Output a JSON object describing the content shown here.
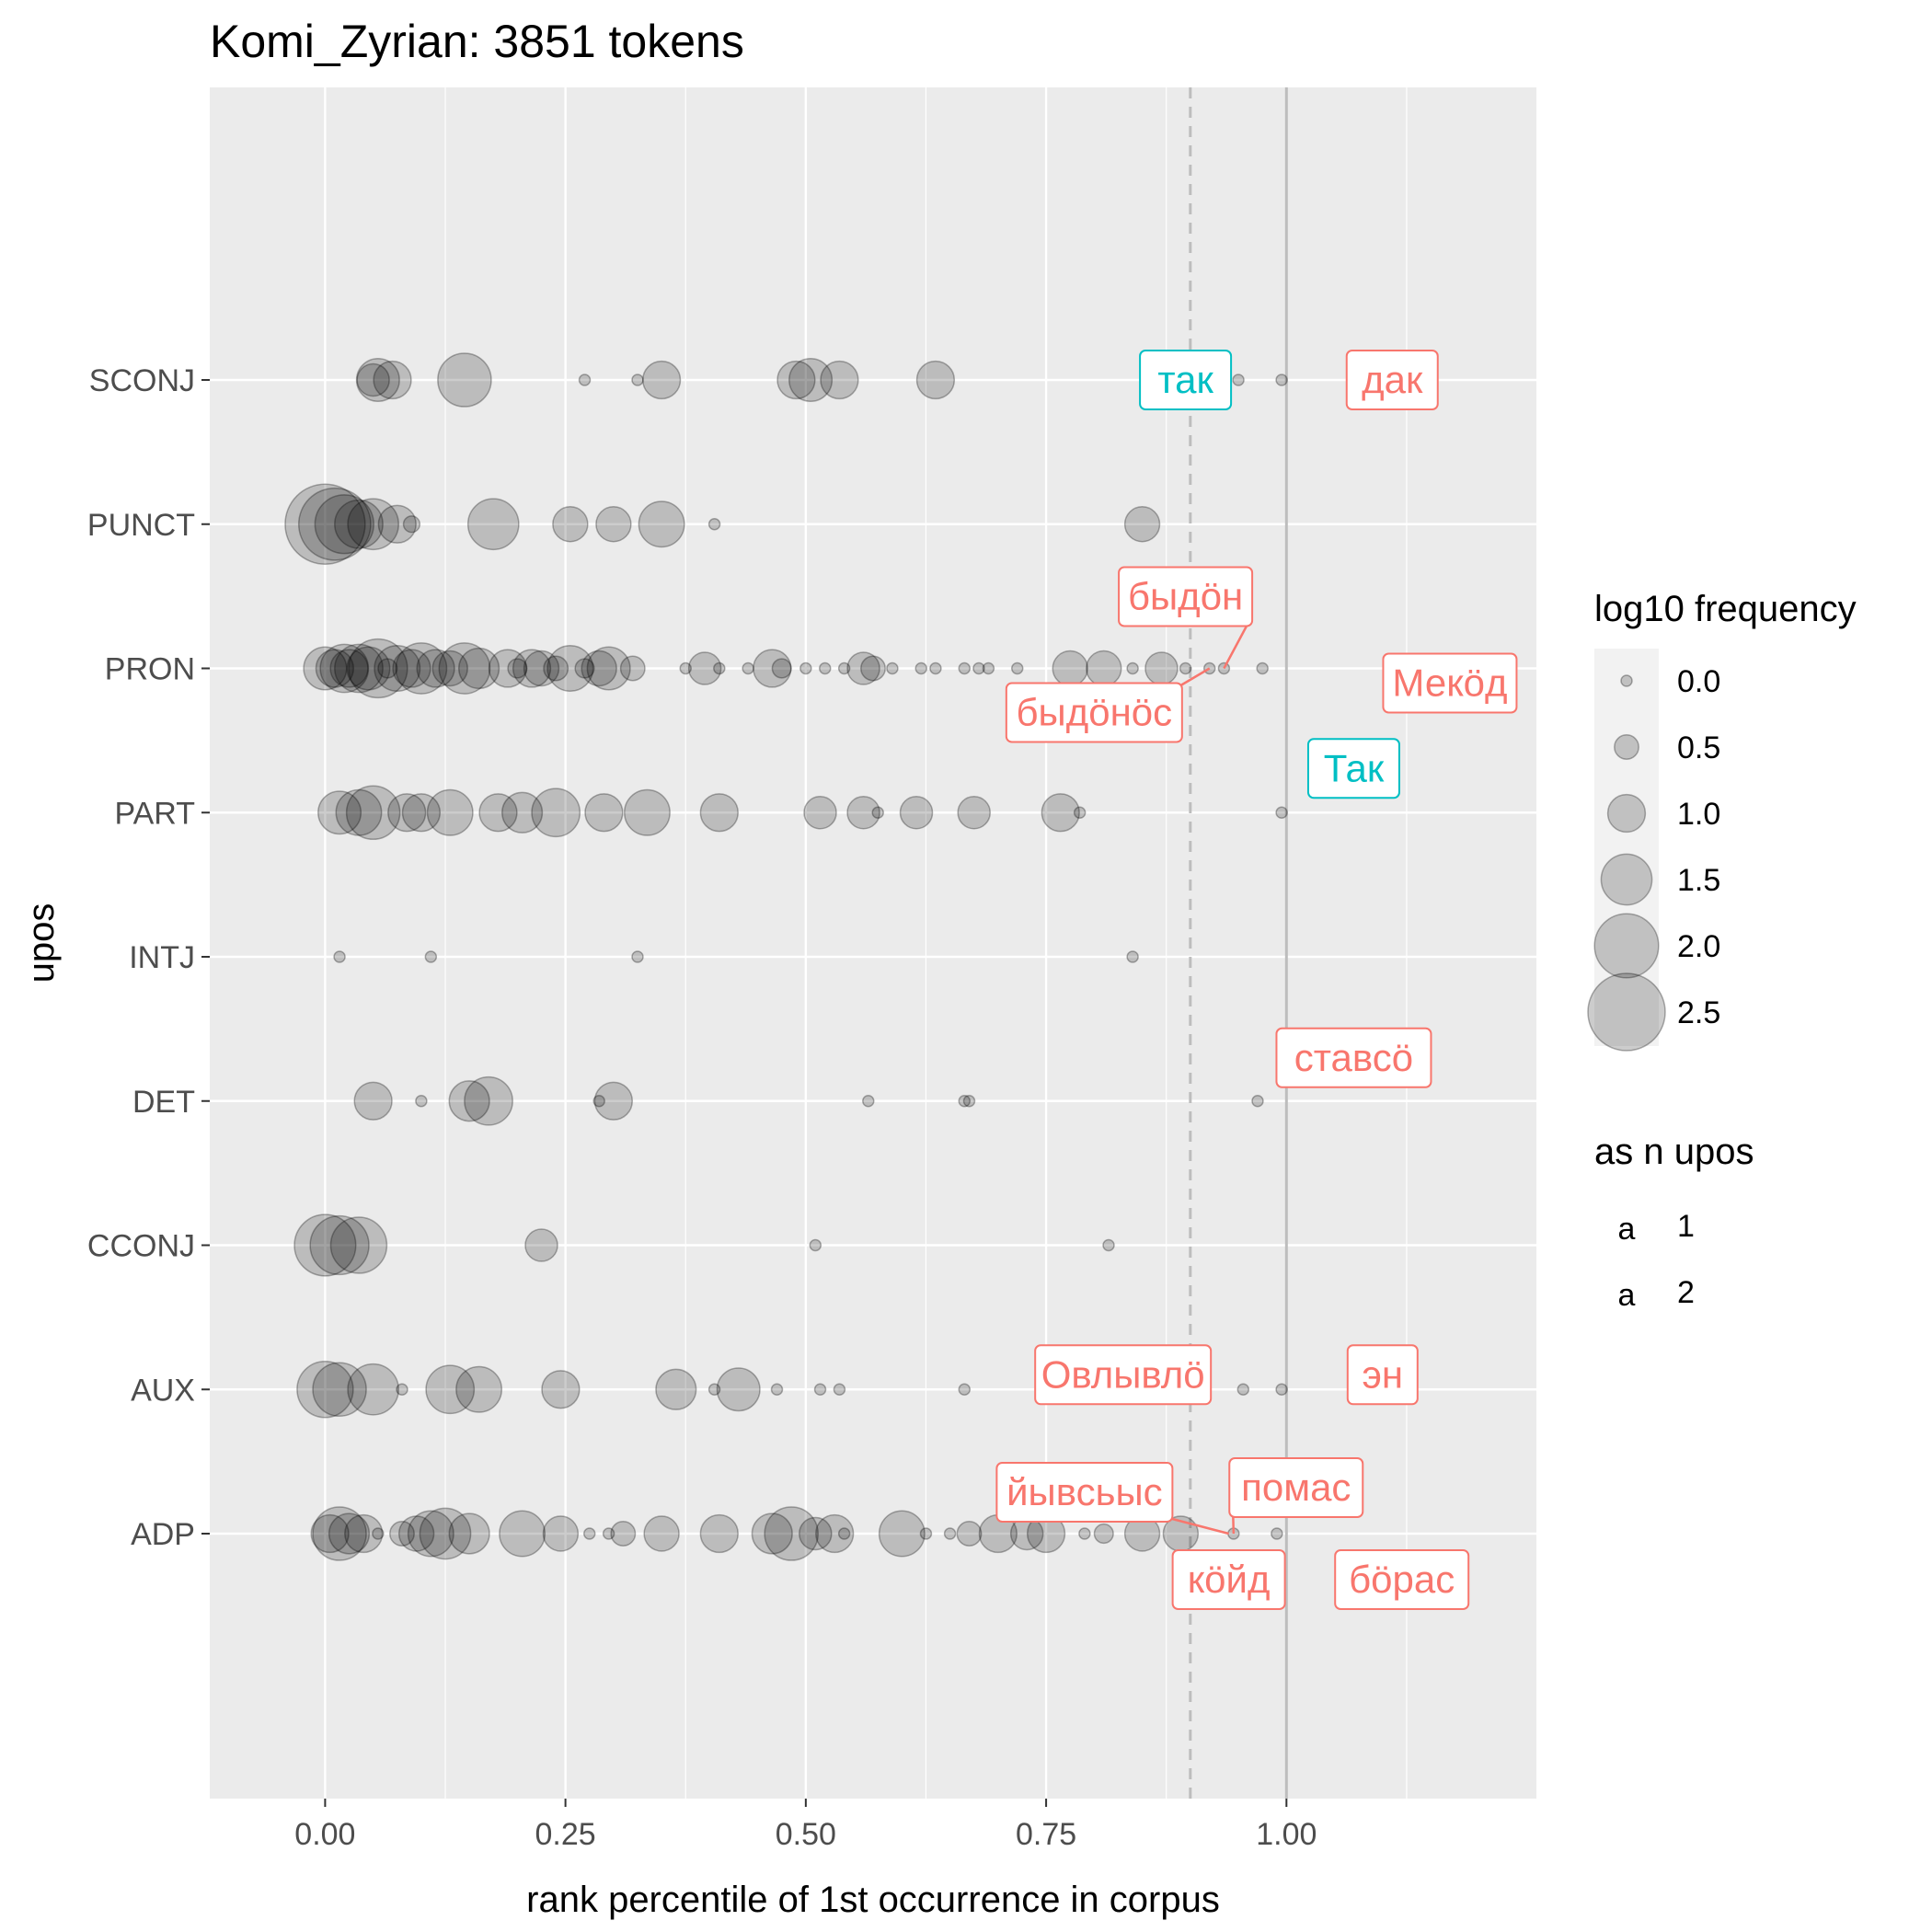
{
  "chart_data": {
    "type": "scatter",
    "title": "Komi_Zyrian: 3851 tokens",
    "xlabel": "rank percentile of 1st occurrence in corpus",
    "ylabel": "upos",
    "xlim": [
      -0.12,
      1.26
    ],
    "x_ticks": [
      "0.00",
      "0.25",
      "0.50",
      "0.75",
      "1.00"
    ],
    "x_tick_values": [
      0,
      0.25,
      0.5,
      0.75,
      1.0
    ],
    "categories": [
      "ADP",
      "AUX",
      "CCONJ",
      "DET",
      "INTJ",
      "PART",
      "PRON",
      "PUNCT",
      "SCONJ"
    ],
    "grid": true,
    "reference_lines": [
      {
        "x": 0.9,
        "style": "dashed",
        "color": "#bdbdbd"
      },
      {
        "x": 1.0,
        "style": "solid",
        "color": "#bdbdbd"
      }
    ],
    "colors": {
      "n1": "#f8766d",
      "n2": "#00bfc4",
      "point_fill": "#000000",
      "panel": "#ebebeb",
      "grid": "#ffffff"
    },
    "point_opacity": 0.2,
    "series": [
      {
        "category": "SCONJ",
        "points": [
          [
            0.05,
            0.8
          ],
          [
            0.055,
            1.2
          ],
          [
            0.07,
            1.0
          ],
          [
            0.145,
            1.6
          ],
          [
            0.27,
            0.0
          ],
          [
            0.325,
            0.0
          ],
          [
            0.35,
            1.0
          ],
          [
            0.49,
            1.0
          ],
          [
            0.505,
            1.2
          ],
          [
            0.535,
            1.0
          ],
          [
            0.635,
            1.0
          ],
          [
            0.95,
            0.0
          ],
          [
            0.995,
            0.0
          ]
        ]
      },
      {
        "category": "PUNCT",
        "points": [
          [
            0.0,
            2.6
          ],
          [
            0.01,
            2.3
          ],
          [
            0.02,
            1.8
          ],
          [
            0.035,
            1.4
          ],
          [
            0.05,
            1.5
          ],
          [
            0.075,
            1.0
          ],
          [
            0.09,
            0.2
          ],
          [
            0.175,
            1.5
          ],
          [
            0.255,
            0.9
          ],
          [
            0.3,
            0.9
          ],
          [
            0.35,
            1.3
          ],
          [
            0.405,
            0.0
          ],
          [
            0.85,
            0.9
          ]
        ]
      },
      {
        "category": "PRON",
        "points": [
          [
            0.0,
            1.2
          ],
          [
            0.01,
            1.0
          ],
          [
            0.02,
            1.4
          ],
          [
            0.025,
            1.0
          ],
          [
            0.035,
            1.4
          ],
          [
            0.045,
            1.2
          ],
          [
            0.055,
            1.8
          ],
          [
            0.065,
            0.3
          ],
          [
            0.075,
            1.3
          ],
          [
            0.09,
            1.0
          ],
          [
            0.1,
            1.5
          ],
          [
            0.115,
            1.0
          ],
          [
            0.13,
            0.9
          ],
          [
            0.145,
            1.5
          ],
          [
            0.16,
            1.1
          ],
          [
            0.19,
            1.0
          ],
          [
            0.2,
            0.3
          ],
          [
            0.215,
            1.0
          ],
          [
            0.225,
            0.9
          ],
          [
            0.24,
            0.5
          ],
          [
            0.255,
            1.3
          ],
          [
            0.27,
            0.3
          ],
          [
            0.285,
            0.9
          ],
          [
            0.295,
            1.2
          ],
          [
            0.32,
            0.5
          ],
          [
            0.375,
            0.0
          ],
          [
            0.395,
            0.8
          ],
          [
            0.41,
            0.0
          ],
          [
            0.44,
            0.0
          ],
          [
            0.465,
            1.0
          ],
          [
            0.475,
            0.3
          ],
          [
            0.5,
            0.0
          ],
          [
            0.52,
            0.0
          ],
          [
            0.54,
            0.0
          ],
          [
            0.56,
            0.8
          ],
          [
            0.57,
            0.5
          ],
          [
            0.59,
            0.0
          ],
          [
            0.62,
            0.0
          ],
          [
            0.635,
            0.0
          ],
          [
            0.665,
            0.0
          ],
          [
            0.68,
            0.0
          ],
          [
            0.69,
            0.0
          ],
          [
            0.72,
            0.0
          ],
          [
            0.775,
            0.9
          ],
          [
            0.81,
            0.9
          ],
          [
            0.84,
            0.0
          ],
          [
            0.87,
            0.8
          ],
          [
            0.895,
            0.0
          ],
          [
            0.92,
            0.0
          ],
          [
            0.935,
            0.0
          ],
          [
            0.975,
            0.0
          ]
        ]
      },
      {
        "category": "PART",
        "points": [
          [
            0.015,
            1.2
          ],
          [
            0.035,
            1.3
          ],
          [
            0.05,
            1.6
          ],
          [
            0.085,
            1.0
          ],
          [
            0.1,
            1.0
          ],
          [
            0.13,
            1.3
          ],
          [
            0.18,
            1.0
          ],
          [
            0.205,
            1.1
          ],
          [
            0.24,
            1.4
          ],
          [
            0.29,
            1.0
          ],
          [
            0.335,
            1.3
          ],
          [
            0.41,
            1.0
          ],
          [
            0.515,
            0.8
          ],
          [
            0.56,
            0.8
          ],
          [
            0.575,
            0.0
          ],
          [
            0.615,
            0.8
          ],
          [
            0.675,
            0.8
          ],
          [
            0.765,
            1.0
          ],
          [
            0.785,
            0.0
          ],
          [
            0.995,
            0.0
          ]
        ]
      },
      {
        "category": "INTJ",
        "points": [
          [
            0.015,
            0.0
          ],
          [
            0.11,
            0.0
          ],
          [
            0.325,
            0.0
          ],
          [
            0.84,
            0.0
          ]
        ]
      },
      {
        "category": "DET",
        "points": [
          [
            0.05,
            1.0
          ],
          [
            0.1,
            0.0
          ],
          [
            0.15,
            1.1
          ],
          [
            0.17,
            1.4
          ],
          [
            0.285,
            0.0
          ],
          [
            0.3,
            1.0
          ],
          [
            0.565,
            0.0
          ],
          [
            0.665,
            0.0
          ],
          [
            0.67,
            0.0
          ],
          [
            0.97,
            0.0
          ]
        ]
      },
      {
        "category": "CCONJ",
        "points": [
          [
            0.0,
            1.9
          ],
          [
            0.015,
            1.8
          ],
          [
            0.035,
            1.7
          ],
          [
            0.225,
            0.8
          ],
          [
            0.51,
            0.0
          ],
          [
            0.815,
            0.0
          ]
        ]
      },
      {
        "category": "AUX",
        "points": [
          [
            0.0,
            1.7
          ],
          [
            0.015,
            1.6
          ],
          [
            0.05,
            1.5
          ],
          [
            0.08,
            0.0
          ],
          [
            0.13,
            1.4
          ],
          [
            0.16,
            1.3
          ],
          [
            0.245,
            1.0
          ],
          [
            0.365,
            1.1
          ],
          [
            0.405,
            0.0
          ],
          [
            0.43,
            1.2
          ],
          [
            0.47,
            0.0
          ],
          [
            0.515,
            0.0
          ],
          [
            0.535,
            0.0
          ],
          [
            0.665,
            0.0
          ],
          [
            0.955,
            0.0
          ],
          [
            0.995,
            0.0
          ]
        ]
      },
      {
        "category": "ADP",
        "points": [
          [
            0.005,
            1.0
          ],
          [
            0.015,
            1.6
          ],
          [
            0.025,
            1.1
          ],
          [
            0.04,
            1.0
          ],
          [
            0.055,
            0.0
          ],
          [
            0.08,
            0.5
          ],
          [
            0.095,
            0.9
          ],
          [
            0.11,
            1.3
          ],
          [
            0.125,
            1.5
          ],
          [
            0.15,
            1.1
          ],
          [
            0.205,
            1.3
          ],
          [
            0.245,
            0.9
          ],
          [
            0.275,
            0.0
          ],
          [
            0.295,
            0.0
          ],
          [
            0.31,
            0.5
          ],
          [
            0.35,
            0.9
          ],
          [
            0.41,
            1.0
          ],
          [
            0.465,
            1.1
          ],
          [
            0.485,
            1.6
          ],
          [
            0.51,
            0.8
          ],
          [
            0.53,
            1.0
          ],
          [
            0.54,
            0.0
          ],
          [
            0.6,
            1.3
          ],
          [
            0.625,
            0.0
          ],
          [
            0.65,
            0.0
          ],
          [
            0.67,
            0.5
          ],
          [
            0.7,
            1.0
          ],
          [
            0.73,
            0.8
          ],
          [
            0.75,
            1.0
          ],
          [
            0.79,
            0.0
          ],
          [
            0.81,
            0.3
          ],
          [
            0.85,
            0.9
          ],
          [
            0.89,
            0.9
          ],
          [
            0.945,
            0.0
          ],
          [
            0.99,
            0.0
          ]
        ]
      }
    ],
    "size_legend": {
      "title": "log10 frequency",
      "levels": [
        0.0,
        0.5,
        1.0,
        1.5,
        2.0,
        2.5
      ],
      "labels": [
        "0.0",
        "0.5",
        "1.0",
        "1.5",
        "2.0",
        "2.5"
      ]
    },
    "color_legend": {
      "title": "as n upos",
      "key_glyph": "a",
      "entries": [
        {
          "label": "1",
          "color": "#f8766d"
        },
        {
          "label": "2",
          "color": "#00bfc4"
        }
      ]
    },
    "annotations": [
      {
        "text": "так",
        "category": "SCONJ",
        "x": 0.895,
        "color": "#00bfc4"
      },
      {
        "text": "дак",
        "category": "SCONJ",
        "x": 1.11,
        "color": "#f8766d"
      },
      {
        "text": "быдӧн",
        "category": "PRON",
        "x": 0.895,
        "color": "#f8766d",
        "point_x": 0.935
      },
      {
        "text": "быдӧнӧс",
        "category": "PRON",
        "x": 0.8,
        "color": "#f8766d",
        "point_x": 0.92
      },
      {
        "text": "Мекӧд",
        "category": "PRON",
        "x": 1.17,
        "color": "#f8766d"
      },
      {
        "text": "Так",
        "category": "PART",
        "x": 1.07,
        "color": "#00bfc4"
      },
      {
        "text": "ставсӧ",
        "category": "DET",
        "x": 1.07,
        "color": "#f8766d"
      },
      {
        "text": "Овлывлӧ",
        "category": "AUX",
        "x": 0.83,
        "color": "#f8766d"
      },
      {
        "text": "эн",
        "category": "AUX",
        "x": 1.1,
        "color": "#f8766d"
      },
      {
        "text": "йывсьыс",
        "category": "ADP",
        "x": 0.79,
        "color": "#f8766d",
        "point_x": 0.94
      },
      {
        "text": "помас",
        "category": "ADP",
        "x": 1.01,
        "color": "#f8766d",
        "point_x": 0.945
      },
      {
        "text": "кӧйд",
        "category": "ADP",
        "x": 0.94,
        "color": "#f8766d"
      },
      {
        "text": "бӧрас",
        "category": "ADP",
        "x": 1.12,
        "color": "#f8766d"
      }
    ]
  }
}
